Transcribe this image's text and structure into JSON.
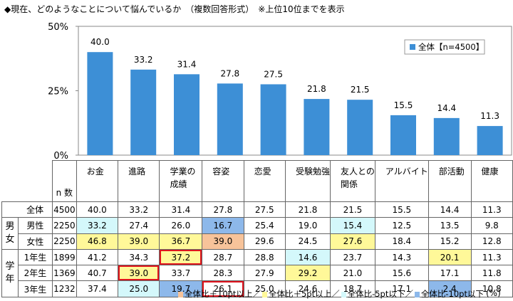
{
  "title": "◆現在、どのようなことについて悩んでいるか　（複数回答形式）　※上位10位までを表示",
  "chart_data": {
    "type": "bar",
    "categories": [
      "お金",
      "進路",
      "学業の成績",
      "容姿",
      "恋愛",
      "受験勉強",
      "友人との関係",
      "アルバイト",
      "部活動",
      "健康"
    ],
    "category_lines": [
      [
        "お金"
      ],
      [
        "進路"
      ],
      [
        "学業の",
        "成績"
      ],
      [
        "容姿"
      ],
      [
        "恋愛"
      ],
      [
        "受験勉強"
      ],
      [
        "友人との",
        "関係"
      ],
      [
        "アルバイト"
      ],
      [
        "部活動"
      ],
      [
        "健康"
      ]
    ],
    "series": [
      {
        "name": "全体【n=4500】",
        "values": [
          40.0,
          33.2,
          31.4,
          27.8,
          27.5,
          21.8,
          21.5,
          15.5,
          14.4,
          11.3
        ]
      }
    ],
    "value_labels": [
      "40.0",
      "33.2",
      "31.4",
      "27.8",
      "27.5",
      "21.8",
      "21.5",
      "15.5",
      "14.4",
      "11.3"
    ],
    "ylim": [
      0,
      50
    ],
    "yticks": [
      0,
      25,
      50
    ],
    "ytick_labels": [
      "0%",
      "25%",
      "50%"
    ],
    "legend": "top-right",
    "bar_color": "#3d8fd6"
  },
  "table": {
    "n_header": "n 数",
    "rows": [
      {
        "group": "",
        "label": "全体",
        "n": "4500",
        "values": [
          "40.0",
          "33.2",
          "31.4",
          "27.8",
          "27.5",
          "21.8",
          "21.5",
          "15.5",
          "14.4",
          "11.3"
        ],
        "colors": [
          "",
          "",
          "",
          "",
          "",
          "",
          "",
          "",
          "",
          ""
        ],
        "boxed": [
          false,
          false,
          false,
          false,
          false,
          false,
          false,
          false,
          false,
          false
        ]
      },
      {
        "group": "男女",
        "label": "男性",
        "n": "2250",
        "values": [
          "33.2",
          "27.4",
          "26.0",
          "16.7",
          "25.4",
          "19.0",
          "15.4",
          "12.5",
          "13.5",
          "9.8"
        ],
        "colors": [
          "cyan",
          "",
          "",
          "blue",
          "",
          "",
          "cyan",
          "",
          "",
          ""
        ],
        "boxed": [
          false,
          false,
          false,
          false,
          false,
          false,
          false,
          false,
          false,
          false
        ]
      },
      {
        "group": "男女",
        "label": "女性",
        "n": "2250",
        "values": [
          "46.8",
          "39.0",
          "36.7",
          "39.0",
          "29.6",
          "24.5",
          "27.6",
          "18.4",
          "15.2",
          "12.8"
        ],
        "colors": [
          "yellow",
          "yellow",
          "yellow",
          "orange",
          "",
          "",
          "yellow",
          "",
          "",
          ""
        ],
        "boxed": [
          false,
          false,
          false,
          false,
          false,
          false,
          false,
          false,
          false,
          false
        ]
      },
      {
        "group": "学年",
        "label": "1年生",
        "n": "1899",
        "values": [
          "41.2",
          "34.3",
          "37.2",
          "28.7",
          "28.8",
          "14.6",
          "23.7",
          "14.3",
          "20.1",
          "11.3"
        ],
        "colors": [
          "",
          "",
          "yellow",
          "",
          "",
          "cyan",
          "",
          "",
          "yellow",
          ""
        ],
        "boxed": [
          false,
          false,
          true,
          false,
          false,
          false,
          false,
          false,
          false,
          false
        ]
      },
      {
        "group": "学年",
        "label": "2年生",
        "n": "1369",
        "values": [
          "40.7",
          "39.0",
          "33.7",
          "28.3",
          "27.9",
          "29.2",
          "21.0",
          "15.6",
          "17.1",
          "11.8"
        ],
        "colors": [
          "",
          "yellow",
          "",
          "",
          "",
          "yellow",
          "",
          "",
          "",
          ""
        ],
        "boxed": [
          false,
          true,
          false,
          false,
          false,
          false,
          false,
          false,
          false,
          false
        ]
      },
      {
        "group": "学年",
        "label": "3年生",
        "n": "1232",
        "values": [
          "37.4",
          "25.0",
          "19.7",
          "26.1",
          "25.0",
          "24.6",
          "18.7",
          "17.1",
          "2.4",
          "10.8"
        ],
        "colors": [
          "",
          "cyan",
          "blue",
          "",
          "",
          "",
          "",
          "",
          "blue",
          ""
        ],
        "boxed": [
          false,
          false,
          false,
          true,
          false,
          false,
          false,
          false,
          false,
          false
        ]
      }
    ]
  },
  "legend_bottom": [
    {
      "color": "#f7c39a",
      "label": "全体比＋10pt以上／"
    },
    {
      "color": "#fff899",
      "label": "全体比＋5pt以上／"
    },
    {
      "color": "#d4f8fb",
      "label": "全体比-5pt以下／"
    },
    {
      "color": "#8db8ea",
      "label": "全体比-10pt以下"
    }
  ],
  "unit": "(%)"
}
